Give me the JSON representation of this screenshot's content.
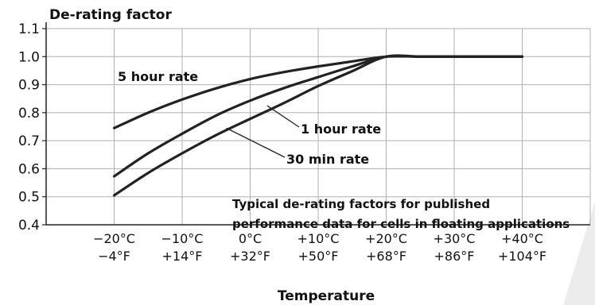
{
  "chart_data": {
    "type": "line",
    "ylabel": "De-rating factor",
    "xlabel": "Temperature",
    "ylim": [
      0.4,
      1.1
    ],
    "yticks": [
      "0.4",
      "0.5",
      "0.6",
      "0.7",
      "0.8",
      "0.9",
      "1.0",
      "1.1"
    ],
    "xticks_celsius": [
      "−20°C",
      "−10°C",
      "0°C",
      "+10°C",
      "+20°C",
      "+30°C",
      "+40°C"
    ],
    "xticks_fahrenheit": [
      "−4°F",
      "+14°F",
      "+32°F",
      "+50°F",
      "+68°F",
      "+86°F",
      "+104°F"
    ],
    "x": [
      -20,
      -15,
      -10,
      -5,
      0,
      5,
      10,
      15,
      20,
      25,
      30,
      35,
      40
    ],
    "grid": true,
    "series": [
      {
        "name": "5 hour rate",
        "values": [
          0.745,
          0.8,
          0.847,
          0.887,
          0.92,
          0.945,
          0.965,
          0.983,
          1.0,
          1.0,
          1.0,
          1.0,
          1.0
        ]
      },
      {
        "name": "1 hour rate",
        "values": [
          0.573,
          0.655,
          0.725,
          0.79,
          0.843,
          0.888,
          0.927,
          0.965,
          1.0,
          1.0,
          1.0,
          1.0,
          1.0
        ]
      },
      {
        "name": "30 min rate",
        "values": [
          0.505,
          0.585,
          0.655,
          0.72,
          0.778,
          0.835,
          0.895,
          0.948,
          1.0,
          1.0,
          1.0,
          1.0,
          1.0
        ]
      }
    ],
    "annotation_lines": [
      "Typical de-rating factors for published",
      "performance data for cells in floating applications"
    ],
    "line_color": "#222222",
    "grid_color": "#b0b0b0"
  }
}
